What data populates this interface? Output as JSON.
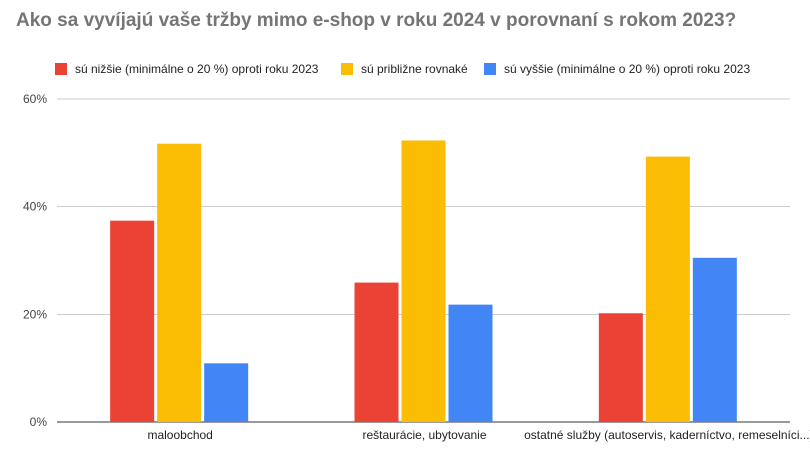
{
  "chart_data": {
    "type": "bar",
    "title": "Ako sa vyvíjajú vaše tržby mimo e-shop v roku 2024 v porovnaní s rokom 2023?",
    "categories": [
      "maloobchod",
      "reštaurácie, ubytovanie",
      "ostatné služby (autoservis, kaderníctvo, remeselníci...)"
    ],
    "series": [
      {
        "name": "sú nižšie (minimálne o 20 %) oproti roku 2023",
        "color": "#ea4335",
        "values": [
          37.4,
          25.9,
          20.2
        ]
      },
      {
        "name": "sú približne rovnaké",
        "color": "#fbbc04",
        "values": [
          51.7,
          52.3,
          49.3
        ]
      },
      {
        "name": "sú vyššie (minimálne o 20 %) oproti roku 2023",
        "color": "#4285f4",
        "values": [
          10.9,
          21.8,
          30.5
        ]
      }
    ],
    "yticks": [
      "0%",
      "20%",
      "40%",
      "60%"
    ],
    "ylim": [
      0,
      60
    ],
    "xlabel": "",
    "ylabel": "",
    "grid": true,
    "legend_position": "top"
  }
}
